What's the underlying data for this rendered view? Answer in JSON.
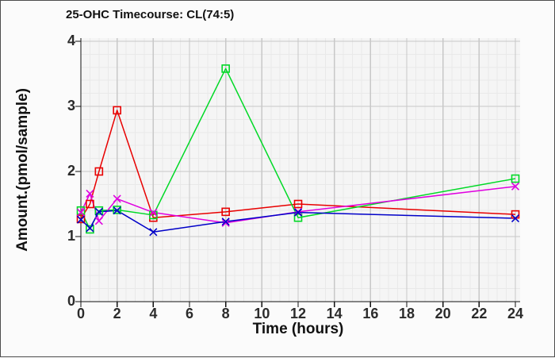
{
  "window": {
    "background": "#fbfbfb",
    "border_color": "#4d4d4d"
  },
  "chart_data": {
    "type": "line",
    "title": "25-OHC Timecourse: CL(74:5)",
    "xlabel": "Time (hours)",
    "ylabel": "Amount.(pmol/sample)",
    "xlim": [
      0,
      24
    ],
    "ylim": [
      0,
      4
    ],
    "x_ticks": [
      0,
      2,
      4,
      6,
      8,
      10,
      12,
      14,
      16,
      18,
      20,
      22,
      24
    ],
    "y_ticks": [
      0,
      1,
      2,
      3,
      4
    ],
    "x_minor_step": 0.5,
    "y_minor_step": 0.2,
    "grid": true,
    "legend_position": "none",
    "x": [
      0,
      0.5,
      1,
      2,
      4,
      8,
      12,
      24
    ],
    "series": [
      {
        "name": "red-squares",
        "marker": "square",
        "color": "#e80000",
        "values": [
          1.27,
          1.5,
          2.0,
          2.94,
          1.29,
          1.38,
          1.5,
          1.34
        ]
      },
      {
        "name": "green-squares",
        "marker": "square",
        "color": "#00d926",
        "values": [
          1.4,
          1.11,
          1.4,
          1.41,
          1.33,
          3.58,
          1.29,
          1.89
        ]
      },
      {
        "name": "magenta-x",
        "marker": "x",
        "color": "#e000e0",
        "values": [
          1.37,
          1.66,
          1.24,
          1.58,
          1.37,
          1.21,
          1.38,
          1.77
        ]
      },
      {
        "name": "blue-x",
        "marker": "x",
        "color": "#0000c8",
        "values": [
          1.26,
          1.13,
          1.38,
          1.4,
          1.07,
          1.23,
          1.37,
          1.28
        ]
      }
    ],
    "colors": {
      "plot_background": "#f5f5f5",
      "minor_grid": "#e9e9e9",
      "major_grid": "#c8c8c8",
      "axis": "#111111",
      "text": "#2b2b2b"
    }
  }
}
